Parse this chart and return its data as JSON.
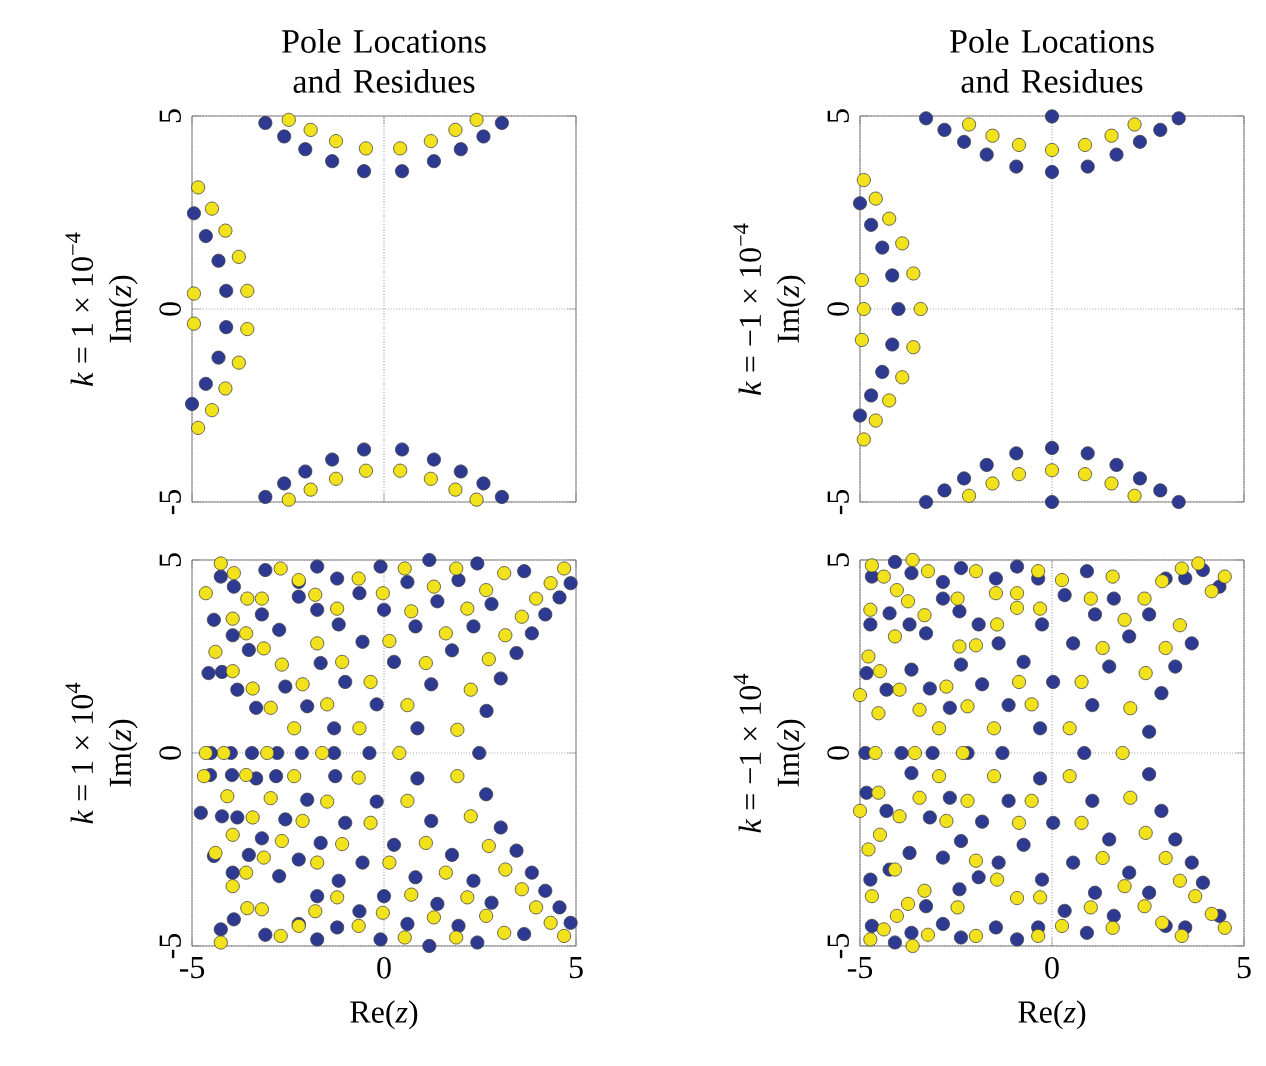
{
  "chart_data": [
    {
      "type": "scatter",
      "title": "Pole Locations and Residues",
      "ylabel": "Im(*z*)",
      "annotations": [
        "*k* = 1 × 10$^{−4}$"
      ],
      "xlim": [
        -5,
        5
      ],
      "ylim": [
        -5,
        5
      ],
      "xticks": [
        -5,
        0,
        5
      ],
      "yticks": [
        -5,
        0,
        5
      ],
      "tick_labels": "y",
      "grid": true,
      "marker": "circle",
      "series": [
        {
          "color": "#2e3a92",
          "x": [
            -3.09,
            -2.6,
            -2.05,
            -1.35,
            -0.52,
            0.47,
            1.3,
            2.0,
            2.59,
            3.07,
            -3.09,
            -2.6,
            -2.05,
            -1.35,
            -0.52,
            0.47,
            1.3,
            2.0,
            2.59,
            3.07,
            -4.64,
            -4.31,
            -4.11,
            -4.11,
            -4.31,
            -4.64,
            -4.95,
            -5.0
          ],
          "values": [
            4.82,
            4.47,
            4.14,
            3.83,
            3.57,
            3.57,
            3.83,
            4.14,
            4.47,
            4.82,
            -4.87,
            -4.52,
            -4.21,
            -3.9,
            -3.64,
            -3.64,
            -3.9,
            -4.21,
            -4.52,
            -4.87,
            1.89,
            1.25,
            0.47,
            -0.47,
            -1.26,
            -1.94,
            2.48,
            -2.46
          ]
        },
        {
          "color": "#f2e21c",
          "x": [
            -2.48,
            -1.91,
            -1.25,
            -0.47,
            0.42,
            1.22,
            1.86,
            2.41,
            -2.48,
            -1.91,
            -1.25,
            -0.47,
            0.42,
            1.22,
            1.86,
            2.41,
            -4.48,
            -4.13,
            -3.78,
            -3.56,
            -3.56,
            -3.78,
            -4.13,
            -4.48,
            -4.84,
            -4.95,
            -4.95,
            -4.84
          ],
          "values": [
            4.9,
            4.64,
            4.35,
            4.16,
            4.16,
            4.35,
            4.64,
            4.9,
            -4.94,
            -4.68,
            -4.4,
            -4.19,
            -4.19,
            -4.4,
            -4.68,
            -4.94,
            2.6,
            2.03,
            1.35,
            0.47,
            -0.52,
            -1.39,
            -2.06,
            -2.62,
            3.15,
            0.4,
            -0.38,
            -3.08
          ]
        }
      ]
    },
    {
      "type": "scatter",
      "title": "Pole Locations and Residues",
      "ylabel": "Im(*z*)",
      "annotations": [
        "*k* = −1 × 10$^{−4}$"
      ],
      "xlim": [
        -5,
        5
      ],
      "ylim": [
        -5,
        5
      ],
      "xticks": [
        -5,
        0,
        5
      ],
      "yticks": [
        -5,
        0,
        5
      ],
      "tick_labels": "y",
      "grid": true,
      "marker": "circle",
      "series": [
        {
          "color": "#2e3a92",
          "x": [
            -3.28,
            -2.8,
            -2.29,
            -1.7,
            -0.93,
            0.0,
            0.93,
            1.68,
            2.29,
            2.82,
            3.3,
            0.0,
            -3.28,
            -2.8,
            -2.29,
            -1.7,
            -0.93,
            0.0,
            0.93,
            1.68,
            2.29,
            2.82,
            3.3,
            0.0,
            -5.0,
            -4.71,
            -4.42,
            -4.16,
            -4.0,
            -4.16,
            -4.42,
            -4.71,
            -5.0
          ],
          "values": [
            4.94,
            4.64,
            4.33,
            4.0,
            3.69,
            3.55,
            3.69,
            4.0,
            4.33,
            4.64,
            4.94,
            4.99,
            -5.0,
            -4.7,
            -4.39,
            -4.04,
            -3.74,
            -3.6,
            -3.74,
            -4.04,
            -4.39,
            -4.7,
            -5.0,
            -5.0,
            2.74,
            2.18,
            1.59,
            0.87,
            0.0,
            -0.92,
            -1.63,
            -2.24,
            -2.76
          ]
        },
        {
          "color": "#f2e21c",
          "x": [
            -2.16,
            -1.55,
            -0.86,
            0.0,
            0.86,
            1.55,
            2.15,
            -2.16,
            -1.55,
            -0.86,
            0.0,
            0.86,
            1.55,
            2.15,
            -4.9,
            -4.59,
            -4.24,
            -3.9,
            -3.61,
            -3.42,
            -3.61,
            -3.9,
            -4.24,
            -4.59,
            -4.9,
            -4.95,
            -4.9,
            -4.95
          ],
          "values": [
            4.78,
            4.49,
            4.25,
            4.12,
            4.25,
            4.49,
            4.78,
            -4.84,
            -4.52,
            -4.28,
            -4.18,
            -4.28,
            -4.52,
            -4.84,
            3.34,
            2.86,
            2.34,
            1.7,
            0.92,
            0.0,
            -0.99,
            -1.77,
            -2.37,
            -2.89,
            -3.38,
            0.75,
            0.0,
            -0.8
          ]
        }
      ]
    },
    {
      "type": "scatter",
      "xlabel": "Re(*z*)",
      "ylabel": "Im(*z*)",
      "annotations": [
        "*k* = 1 × 10$^{4}$"
      ],
      "xlim": [
        -5,
        5
      ],
      "ylim": [
        -5,
        5
      ],
      "xticks": [
        -5,
        0,
        5
      ],
      "yticks": [
        -5,
        0,
        5
      ],
      "grid": true,
      "marker": "circle",
      "series": [
        {
          "color": "#2e3a92",
          "x": [
            -4.25,
            -3.91,
            -3.09,
            -2.22,
            -1.74,
            -1.22,
            -0.64,
            -0.09,
            0.61,
            1.18,
            1.39,
            1.94,
            2.43,
            2.8,
            3.65,
            4.2,
            4.57,
            4.86,
            -4.43,
            -3.94,
            -3.52,
            -3.18,
            -2.73,
            -2.22,
            -1.74,
            -1.65,
            -1.18,
            -0.56,
            0.0,
            0.26,
            0.82,
            1.23,
            1.77,
            2.33,
            2.67,
            3.04,
            3.45,
            3.85,
            -4.57,
            -4.22,
            -3.82,
            -3.33,
            -2.57,
            -2.0,
            -1.3,
            -1.01,
            -0.19,
            0.87,
            2.48,
            -4.51,
            -3.99,
            -3.44,
            -2.78,
            -2.14,
            -1.3,
            -0.38,
            -4.53,
            -3.96,
            -3.33,
            -2.81,
            -2.0,
            -1.27,
            -0.19,
            0.87,
            2.66,
            -4.77,
            -4.22,
            -3.82,
            -2.57,
            -1.01,
            -1.65,
            -0.56,
            0.26,
            1.23,
            1.77,
            3.04,
            3.45,
            3.85,
            4.2,
            4.57,
            4.86,
            -4.43,
            -3.94,
            -3.52,
            -3.18,
            -2.73,
            -2.22,
            -1.74,
            -1.18,
            -0.64,
            0.0,
            0.82,
            1.39,
            2.33,
            2.8,
            3.65,
            -4.25,
            -3.91,
            -3.09,
            -2.22,
            -1.74,
            -1.22,
            -0.09,
            0.61,
            1.18,
            1.94,
            2.43
          ],
          "values": [
            4.57,
            4.31,
            4.74,
            4.43,
            4.83,
            4.52,
            4.14,
            4.83,
            4.43,
            5.0,
            3.93,
            4.48,
            4.91,
            3.86,
            4.71,
            3.59,
            4.03,
            4.4,
            3.45,
            3.05,
            2.67,
            3.59,
            3.19,
            4.05,
            3.71,
            2.33,
            3.33,
            2.88,
            3.71,
            2.36,
            3.28,
            1.78,
            2.66,
            3.28,
            1.09,
            1.93,
            2.59,
            3.1,
            2.07,
            2.1,
            1.64,
            1.17,
            1.72,
            1.21,
            0.64,
            1.84,
            1.26,
            0.64,
            0.0,
            0.0,
            0.0,
            0.0,
            0.0,
            0.0,
            0.0,
            0.0,
            -0.57,
            -0.57,
            -0.66,
            -0.6,
            -1.21,
            -0.6,
            -1.26,
            -0.66,
            -1.07,
            -1.55,
            -1.64,
            -1.67,
            -1.72,
            -1.81,
            -2.33,
            -2.84,
            -2.38,
            -1.76,
            -2.64,
            -1.93,
            -2.53,
            -3.1,
            -3.57,
            -4.0,
            -4.4,
            -2.67,
            -3.1,
            -2.64,
            -2.21,
            -3.19,
            -2.76,
            -3.71,
            -3.31,
            -4.1,
            -3.71,
            -3.22,
            -3.91,
            -3.31,
            -3.88,
            -4.69,
            -4.57,
            -4.31,
            -4.71,
            -4.43,
            -4.83,
            -4.52,
            -4.83,
            -4.43,
            -5.0,
            -4.48,
            -4.91
          ]
        },
        {
          "color": "#f2e21c",
          "x": [
            -4.25,
            -3.91,
            -4.64,
            -3.56,
            -3.18,
            -2.69,
            -2.22,
            -1.79,
            -1.22,
            -0.66,
            -0.03,
            0.14,
            0.54,
            0.71,
            1.09,
            1.3,
            1.61,
            1.88,
            2.17,
            2.26,
            2.66,
            2.73,
            3.16,
            3.13,
            3.59,
            3.96,
            4.34,
            4.69,
            -4.39,
            -3.94,
            -3.94,
            -3.59,
            -3.42,
            -3.13,
            -2.95,
            -2.66,
            -2.34,
            -2.12,
            -1.74,
            -1.48,
            -1.09,
            -0.64,
            -0.35,
            0.61,
            1.91,
            -4.64,
            -4.17,
            -3.04,
            -1.61,
            0.4,
            -4.69,
            -4.08,
            -3.59,
            -2.95,
            -2.34,
            -1.48,
            -0.66,
            0.61,
            1.91,
            2.26,
            -4.39,
            -3.94,
            -3.94,
            -3.59,
            -3.42,
            -3.13,
            -2.66,
            -2.12,
            -1.74,
            -1.09,
            -0.35,
            0.14,
            0.71,
            1.09,
            1.61,
            2.73,
            3.16,
            3.59,
            3.96,
            4.34,
            4.69,
            -4.25,
            -3.56,
            -3.18,
            -2.69,
            -2.22,
            -1.79,
            -1.22,
            -0.66,
            -0.03,
            0.54,
            1.3,
            2.17,
            2.66,
            3.13,
            1.88
          ],
          "values": [
            4.91,
            4.66,
            4.14,
            4.0,
            4.0,
            4.78,
            4.48,
            4.1,
            3.74,
            4.52,
            4.14,
            2.9,
            4.78,
            3.67,
            2.33,
            4.31,
            3.1,
            4.78,
            3.74,
            1.64,
            4.22,
            2.43,
            3.05,
            4.66,
            3.53,
            4.0,
            4.4,
            4.78,
            2.62,
            3.48,
            2.12,
            3.1,
            1.67,
            2.71,
            1.17,
            2.29,
            0.64,
            1.78,
            2.84,
            1.26,
            2.36,
            0.64,
            1.84,
            1.24,
            0.6,
            0.0,
            0.0,
            0.0,
            0.0,
            0.0,
            -0.6,
            -1.12,
            -0.57,
            -1.17,
            -0.6,
            -1.26,
            -0.64,
            -1.24,
            -0.6,
            -1.64,
            -2.59,
            -2.12,
            -3.45,
            -3.1,
            -1.67,
            -2.71,
            -2.28,
            -1.76,
            -2.84,
            -2.36,
            -1.81,
            -2.84,
            -3.67,
            -2.33,
            -3.1,
            -2.41,
            -3.02,
            -3.53,
            -4.0,
            -4.4,
            -4.74,
            -4.91,
            -4.02,
            -4.05,
            -4.74,
            -4.48,
            -4.1,
            -3.74,
            -4.48,
            -4.14,
            -4.78,
            -4.26,
            -3.74,
            -4.22,
            -4.66,
            -4.78
          ]
        }
      ]
    },
    {
      "type": "scatter",
      "xlabel": "Re(*z*)",
      "ylabel": "Im(*z*)",
      "annotations": [
        "*k* = −1 × 10$^{4}$"
      ],
      "xlim": [
        -5,
        5
      ],
      "ylim": [
        -5,
        5
      ],
      "xticks": [
        -5,
        0,
        5
      ],
      "yticks": [
        -5,
        0,
        5
      ],
      "grid": true,
      "marker": "circle",
      "series": [
        {
          "color": "#2e3a92",
          "x": [
            -4.69,
            -4.09,
            -3.66,
            -2.84,
            -2.37,
            -1.46,
            -0.91,
            -0.36,
            0.33,
            0.91,
            1.12,
            1.61,
            2.53,
            2.96,
            3.47,
            3.93,
            4.36,
            -4.73,
            -4.23,
            -3.71,
            -3.28,
            -2.84,
            -2.41,
            -1.91,
            -1.39,
            -0.74,
            -0.26,
            0.03,
            0.55,
            1.49,
            2.01,
            2.85,
            3.21,
            3.64,
            -4.83,
            -4.31,
            -3.66,
            -3.18,
            -2.66,
            -2.37,
            -1.82,
            -1.13,
            -0.31,
            1.05,
            2.53,
            -4.86,
            -3.92,
            -3.11,
            -2.2,
            -1.29,
            0.84,
            -4.83,
            -4.31,
            -3.66,
            -3.18,
            -2.66,
            -2.37,
            -1.82,
            -1.13,
            -0.31,
            0.03,
            1.05,
            2.53,
            2.85,
            -4.73,
            -4.23,
            -3.71,
            -3.28,
            -2.84,
            -2.41,
            -1.91,
            -1.39,
            -0.74,
            -0.26,
            0.55,
            1.49,
            2.01,
            3.21,
            3.64,
            -4.69,
            -4.09,
            -3.66,
            -2.84,
            -2.37,
            -1.46,
            -0.91,
            -0.36,
            0.33,
            0.91,
            1.12,
            1.61,
            2.53,
            2.96,
            3.47,
            3.93,
            4.36
          ],
          "values": [
            4.57,
            4.95,
            4.66,
            4.43,
            4.79,
            4.52,
            4.83,
            4.52,
            4.09,
            4.71,
            3.59,
            4.0,
            3.59,
            4.52,
            4.53,
            4.74,
            4.31,
            3.33,
            3.62,
            3.33,
            3.1,
            4.0,
            3.67,
            3.33,
            2.84,
            2.36,
            3.33,
            1.84,
            2.84,
            2.24,
            3.02,
            1.55,
            2.24,
            2.84,
            2.07,
            1.64,
            2.16,
            1.67,
            1.17,
            2.29,
            1.78,
            1.24,
            0.64,
            1.24,
            0.55,
            0.0,
            0.0,
            0.0,
            0.0,
            0.0,
            0.0,
            -1.03,
            -1.5,
            -0.52,
            -1.67,
            -1.16,
            -2.28,
            -1.78,
            -1.24,
            -0.66,
            -1.81,
            -1.24,
            -0.55,
            -1.5,
            -3.28,
            -3.02,
            -2.59,
            -3.97,
            -2.71,
            -3.53,
            -3.22,
            -2.84,
            -2.38,
            -3.28,
            -2.84,
            -2.24,
            -3.1,
            -2.24,
            -2.84,
            -4.48,
            -4.91,
            -4.66,
            -4.43,
            -4.78,
            -4.52,
            -4.83,
            -4.52,
            -4.09,
            -4.66,
            -3.62,
            -4.22,
            -3.62,
            -4.48,
            -4.52,
            -3.36,
            -4.22
          ]
        },
        {
          "color": "#f2e21c",
          "x": [
            -4.69,
            -4.38,
            -3.63,
            -3.23,
            -4.04,
            -4.73,
            -3.75,
            -3.32,
            -2.46,
            -1.98,
            -1.46,
            -0.91,
            -0.36,
            0.26,
            1.01,
            1.58,
            1.89,
            2.41,
            2.87,
            3.38,
            3.81,
            4.16,
            4.5,
            3.33,
            2.96,
            2.44,
            2.04,
            1.32,
            0.77,
            0.46,
            -0.91,
            -0.31,
            -1.43,
            -1.98,
            -2.41,
            -2.75,
            -2.2,
            -1.51,
            -0.86,
            -0.53,
            -2.94,
            -3.45,
            -3.97,
            -4.48,
            -4.09,
            -4.78,
            -5.0,
            -4.52,
            -4.6,
            -3.57,
            -2.32,
            1.84,
            0.46,
            2.04,
            2.44,
            2.96,
            3.33,
            3.73,
            4.16,
            4.5,
            3.38,
            2.87,
            2.41,
            1.58,
            1.01,
            0.26,
            -0.36,
            -0.91,
            -0.31,
            -1.43,
            -1.98,
            -2.46,
            -2.75,
            -2.2,
            -1.51,
            -0.86,
            -0.53,
            0.77,
            1.32,
            1.89,
            -2.94,
            -3.45,
            -3.97,
            -4.48,
            -4.09,
            -4.78,
            -4.52,
            -5.0,
            -3.75,
            -3.32,
            -4.04,
            -4.69,
            -4.38,
            -3.23,
            -4.73,
            -3.63,
            -1.98
          ],
          "values": [
            4.86,
            4.57,
            5.0,
            4.71,
            4.22,
            3.71,
            3.93,
            3.57,
            4.0,
            4.71,
            4.14,
            4.14,
            4.71,
            4.48,
            4.0,
            4.57,
            3.45,
            4.0,
            4.45,
            4.78,
            4.91,
            4.19,
            4.57,
            3.31,
            2.72,
            2.07,
            1.16,
            2.72,
            1.84,
            0.64,
            3.76,
            3.74,
            3.33,
            2.79,
            2.76,
            1.72,
            1.21,
            0.64,
            1.84,
            1.26,
            0.64,
            1.12,
            1.64,
            2.12,
            3.02,
            2.5,
            1.5,
            1.03,
            0.0,
            0.0,
            0.0,
            0.0,
            -0.6,
            -1.16,
            -2.07,
            -2.72,
            -3.31,
            -3.71,
            -4.17,
            -4.53,
            -4.74,
            -4.4,
            -3.97,
            -4.53,
            -4.0,
            -4.48,
            -4.74,
            -3.76,
            -3.74,
            -3.28,
            -2.79,
            -4.0,
            -1.76,
            -1.24,
            -0.6,
            -1.81,
            -1.24,
            -1.81,
            -2.72,
            -3.45,
            -0.6,
            -1.16,
            -1.64,
            -2.12,
            -3.02,
            -2.5,
            -1.03,
            -1.5,
            -3.91,
            -3.57,
            -4.22,
            -3.71,
            -4.57,
            -4.71,
            -4.83,
            -5.0,
            -4.74
          ]
        }
      ]
    }
  ]
}
